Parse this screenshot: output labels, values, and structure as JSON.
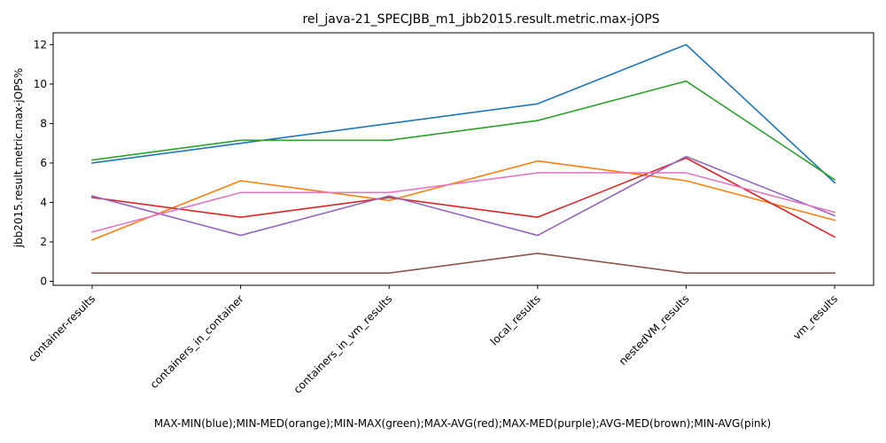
{
  "chart_data": {
    "type": "line",
    "title": "rel_java-21_SPECJBB_m1_jbb2015.result.metric.max-jOPS",
    "xlabel": "MAX-MIN(blue);MIN-MED(orange);MIN-MAX(green);MAX-AVG(red);MAX-MED(purple);AVG-MED(brown);MIN-AVG(pink)",
    "ylabel": "jbb2015.result.metric.max-jOPS%",
    "categories": [
      "container-results",
      "containers_in_container",
      "containers_in_vm_results",
      "local_results",
      "nestedVM_results",
      "vm_results"
    ],
    "ylim": [
      -0.2,
      12.6
    ],
    "yticks": [
      0,
      2,
      4,
      6,
      8,
      10,
      12
    ],
    "grid": false,
    "series": [
      {
        "color": "#1f77b4",
        "values": [
          6.0,
          7.0,
          8.0,
          9.0,
          12.0,
          5.0
        ]
      },
      {
        "color": "#ff7f0e",
        "values": [
          2.1,
          5.1,
          4.1,
          6.1,
          5.1,
          3.1
        ]
      },
      {
        "color": "#2ca02c",
        "values": [
          6.15,
          7.15,
          7.15,
          8.15,
          10.15,
          5.15
        ]
      },
      {
        "color": "#d62728",
        "values": [
          4.25,
          3.25,
          4.25,
          3.25,
          6.25,
          2.25
        ]
      },
      {
        "color": "#9467bd",
        "values": [
          4.33,
          2.33,
          4.33,
          2.33,
          6.33,
          3.33
        ]
      },
      {
        "color": "#8c564b",
        "values": [
          0.42,
          0.42,
          0.42,
          1.42,
          0.42,
          0.42
        ]
      },
      {
        "color": "#e377c2",
        "values": [
          2.5,
          4.5,
          4.5,
          5.5,
          5.5,
          3.5
        ]
      }
    ]
  }
}
